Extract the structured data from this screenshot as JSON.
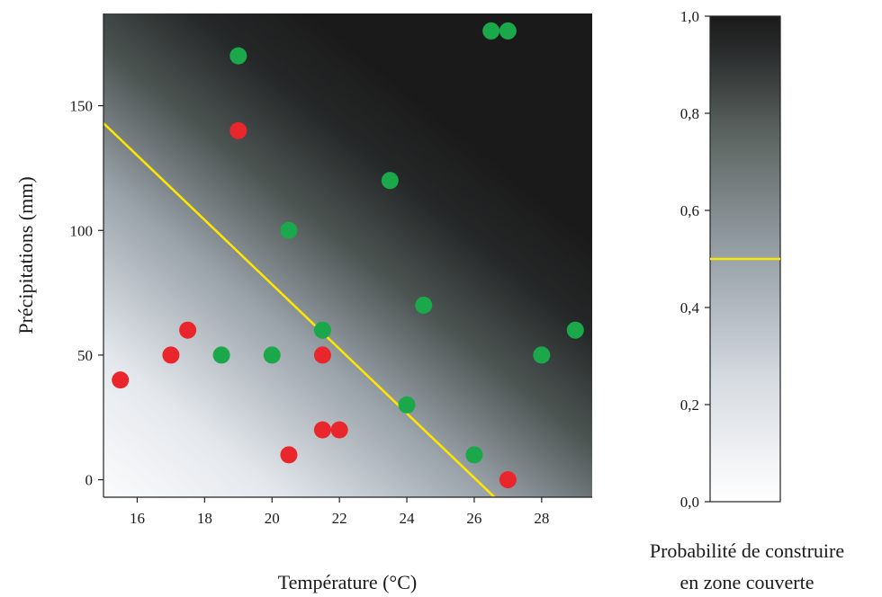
{
  "chart_data": {
    "type": "scatter",
    "xlabel": "Température (°C)",
    "ylabel": "Précipitations (mm)",
    "xlim": [
      15,
      29.5
    ],
    "ylim": [
      -7,
      187
    ],
    "xticks": [
      16,
      18,
      20,
      22,
      24,
      26,
      28
    ],
    "yticks": [
      0,
      50,
      100,
      150
    ],
    "background": "probability-gradient (white → black toward high temperature/precipitation)",
    "decision_line": {
      "probability": 0.5,
      "color": "#ffe600",
      "from": {
        "x": 15,
        "y": 143
      },
      "to": {
        "x": 26.6,
        "y": -7
      }
    },
    "series": [
      {
        "color": "#e8262b",
        "points": [
          {
            "x": 15.5,
            "y": 40
          },
          {
            "x": 17,
            "y": 50
          },
          {
            "x": 17.5,
            "y": 60
          },
          {
            "x": 19,
            "y": 140
          },
          {
            "x": 20.5,
            "y": 10
          },
          {
            "x": 21.5,
            "y": 50
          },
          {
            "x": 21.5,
            "y": 20
          },
          {
            "x": 22,
            "y": 20
          },
          {
            "x": 27,
            "y": 0
          }
        ]
      },
      {
        "color": "#1aa84a",
        "points": [
          {
            "x": 18.5,
            "y": 50
          },
          {
            "x": 19,
            "y": 170
          },
          {
            "x": 20,
            "y": 50
          },
          {
            "x": 20.5,
            "y": 100
          },
          {
            "x": 21.5,
            "y": 60
          },
          {
            "x": 23.5,
            "y": 120
          },
          {
            "x": 24,
            "y": 30
          },
          {
            "x": 24.5,
            "y": 70
          },
          {
            "x": 26,
            "y": 10
          },
          {
            "x": 26.5,
            "y": 180
          },
          {
            "x": 27,
            "y": 180
          },
          {
            "x": 28,
            "y": 50
          },
          {
            "x": 29,
            "y": 60
          }
        ]
      }
    ],
    "colorbar": {
      "title_lines": [
        "Probabilité de construire",
        "en zone couverte"
      ],
      "ticks": [
        "0,0",
        "0,2",
        "0,4",
        "0,6",
        "0,8",
        "1,0"
      ],
      "tick_values": [
        0,
        0.2,
        0.4,
        0.6,
        0.8,
        1.0
      ],
      "marker_value": 0.5,
      "marker_color": "#ffe600"
    }
  }
}
